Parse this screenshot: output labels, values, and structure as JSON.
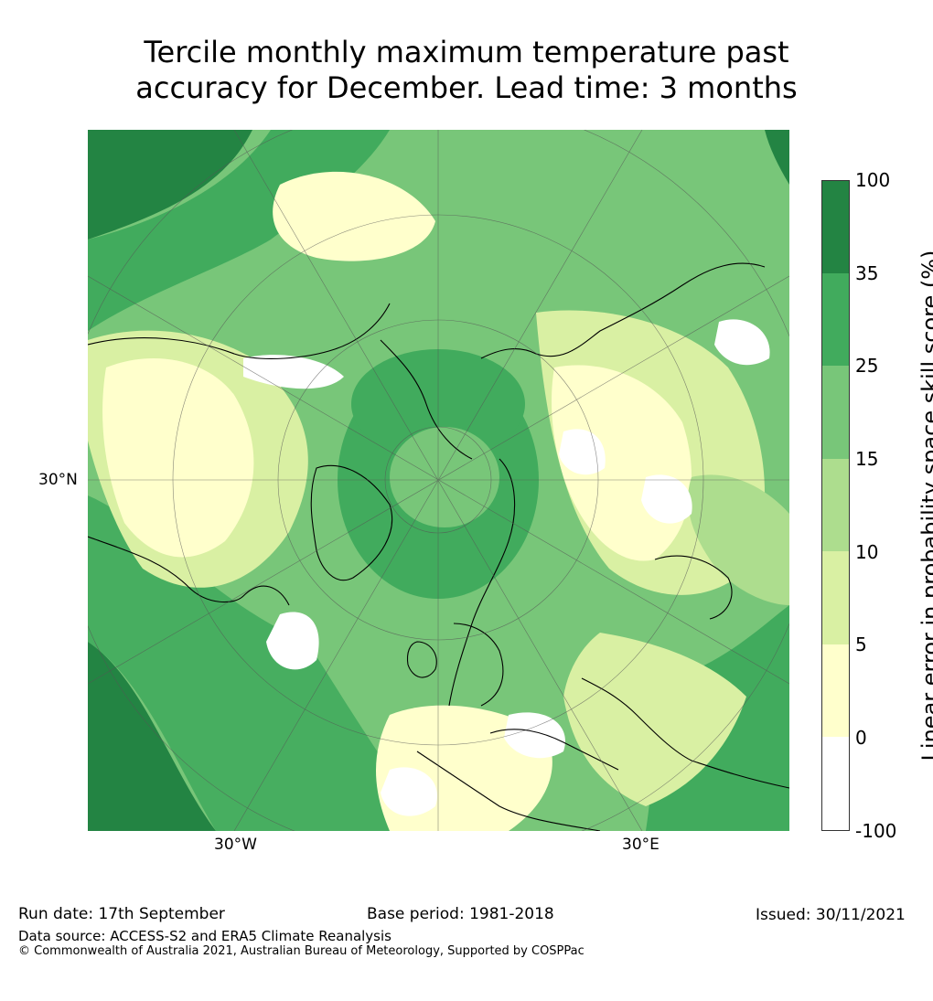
{
  "title_line1": "Tercile monthly maximum temperature past",
  "title_line2": "accuracy for December. Lead time: 3 months",
  "axis": {
    "lon_left": "30°W",
    "lon_right": "30°E",
    "lat_label": "30°N"
  },
  "colorbar": {
    "label": "Linear error in probability space skill score (%)",
    "ticks": [
      "100",
      "35",
      "25",
      "15",
      "10",
      "5",
      "0",
      "-100"
    ],
    "bins": [
      {
        "range": "35-100",
        "color": "#238443"
      },
      {
        "range": "25-35",
        "color": "#41ab5d"
      },
      {
        "range": "15-25",
        "color": "#78c679"
      },
      {
        "range": "10-15",
        "color": "#addd8e"
      },
      {
        "range": "5-10",
        "color": "#d9f0a3"
      },
      {
        "range": "0-5",
        "color": "#ffffcc"
      },
      {
        "range": "-100-0",
        "color": "#ffffff"
      }
    ]
  },
  "footer": {
    "run_date": "Run date: 17th September",
    "base_period": "Base period: 1981-2018",
    "issued": "Issued: 30/11/2021",
    "data_source": "Data source: ACCESS-S2 and ERA5 Climate Reanalysis",
    "copyright": "© Commonwealth of Australia 2021, Australian Bureau of Meteorology, Supported by COSPPac"
  }
}
